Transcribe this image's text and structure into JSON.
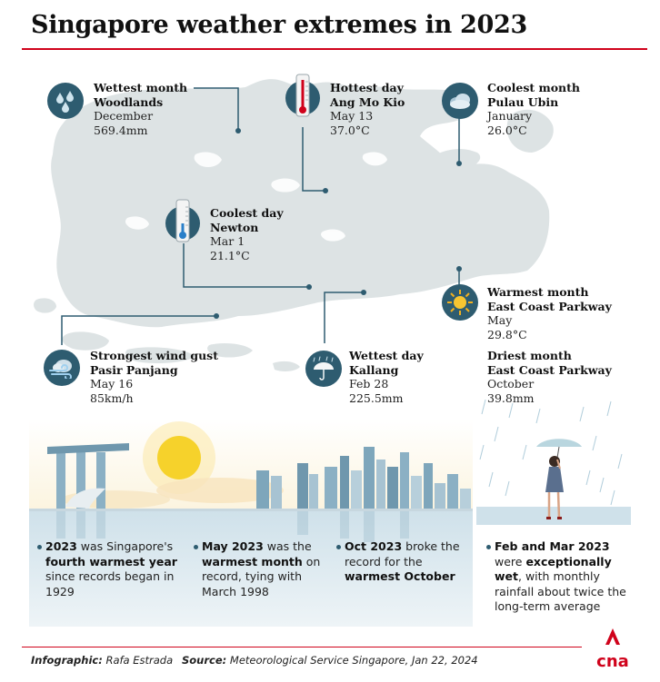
{
  "title": "Singapore weather extremes in 2023",
  "colors": {
    "accent_red": "#d0021b",
    "icon_teal": "#2e5c70",
    "map_gray": "#dde3e4"
  },
  "extremes": [
    {
      "heading": "Wettest month",
      "location": "Woodlands",
      "date": "December",
      "value": "569.4mm",
      "icon": "raindrops-icon"
    },
    {
      "heading": "Hottest day",
      "location": "Ang Mo Kio",
      "date": "May 13",
      "value": "37.0°C",
      "icon": "thermometer-hot-icon"
    },
    {
      "heading": "Coolest month",
      "location": "Pulau Ubin",
      "date": "January",
      "value": "26.0°C",
      "icon": "cloud-icon"
    },
    {
      "heading": "Coolest day",
      "location": "Newton",
      "date": "Mar 1",
      "value": "21.1°C",
      "icon": "thermometer-cold-icon"
    },
    {
      "heading": "Warmest month",
      "location": "East Coast Parkway",
      "date": "May",
      "value": "29.8°C",
      "icon": "sun-icon"
    },
    {
      "heading": "Strongest wind gust",
      "location": "Pasir Panjang",
      "date": "May 16",
      "value": "85km/h",
      "icon": "wind-icon"
    },
    {
      "heading": "Wettest day",
      "location": "Kallang",
      "date": "Feb 28",
      "value": "225.5mm",
      "icon": "umbrella-icon"
    },
    {
      "heading": "Driest month",
      "location": "East Coast Parkway",
      "date": "October",
      "value": "39.8mm",
      "icon": ""
    }
  ],
  "facts": [
    {
      "bold1": "2023",
      "t1": " was Singapore's ",
      "bold2": "fourth warmest year",
      "t2": " since records began in 1929"
    },
    {
      "bold1": "May 2023",
      "t1": " was the ",
      "bold2": "warmest month",
      "t2": " on record, tying with March 1998"
    },
    {
      "bold1": "Oct 2023",
      "t1": " broke the record for the ",
      "bold2": "warmest October",
      "t2": ""
    },
    {
      "bold1": "Feb and Mar 2023",
      "t1": " were ",
      "bold2": "exceptionally wet",
      "t2": ", with monthly rainfall about twice the long-term average"
    }
  ],
  "footer": {
    "credit_label": "Infographic:",
    "credit_name": "Rafa Estrada",
    "source_label": "Source:",
    "source_text": "Meteorological Service Singapore, Jan 22, 2024"
  },
  "logo_text": "cna"
}
